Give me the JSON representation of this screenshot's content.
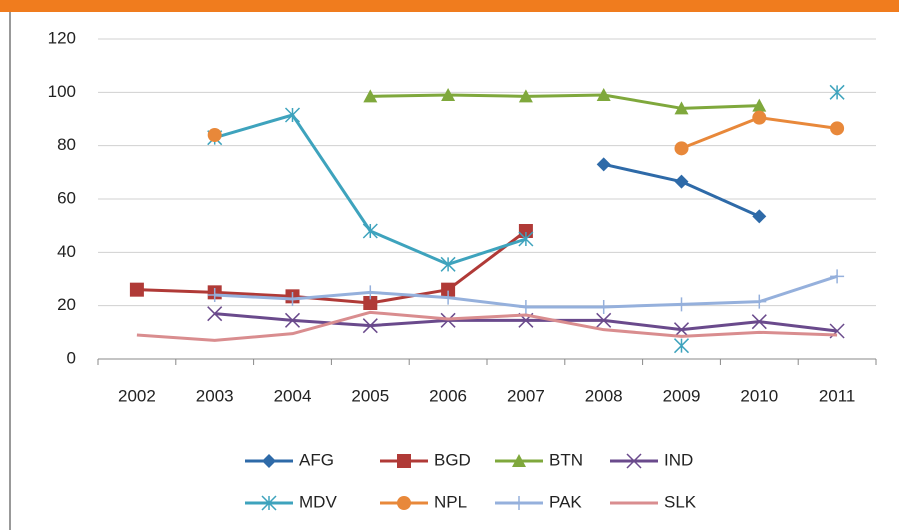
{
  "chart_data": {
    "type": "line",
    "categories": [
      "2002",
      "2003",
      "2004",
      "2005",
      "2006",
      "2007",
      "2008",
      "2009",
      "2010",
      "2011"
    ],
    "ylim": [
      0,
      120
    ],
    "yticks": [
      0,
      20,
      40,
      60,
      80,
      100,
      120
    ],
    "grid": true,
    "series": [
      {
        "name": "AFG",
        "color": "#2e6aa8",
        "marker": "diamond",
        "values": [
          null,
          null,
          null,
          null,
          null,
          null,
          73,
          66.5,
          53.5,
          null
        ]
      },
      {
        "name": "BGD",
        "color": "#b03a37",
        "marker": "square",
        "values": [
          26,
          25,
          23.5,
          21,
          26,
          48,
          null,
          null,
          null,
          null
        ]
      },
      {
        "name": "BTN",
        "color": "#7fa83c",
        "marker": "triangle",
        "values": [
          null,
          null,
          null,
          98.5,
          99,
          98.5,
          99,
          94,
          95,
          null
        ]
      },
      {
        "name": "IND",
        "color": "#6a4a8c",
        "marker": "x",
        "values": [
          null,
          17,
          14.5,
          12.5,
          14.5,
          14.5,
          14.5,
          11,
          14,
          10.5
        ]
      },
      {
        "name": "MDV",
        "color": "#3ea3bd",
        "marker": "star",
        "values": [
          null,
          83,
          91.5,
          48,
          35.5,
          45,
          null,
          5,
          null,
          100
        ]
      },
      {
        "name": "NPL",
        "color": "#e8883a",
        "marker": "circle",
        "values": [
          null,
          84,
          null,
          null,
          null,
          null,
          null,
          79,
          90.5,
          86.5
        ]
      },
      {
        "name": "PAK",
        "color": "#95b0dc",
        "marker": "plus",
        "values": [
          null,
          24,
          22.5,
          25,
          23,
          19.5,
          19.5,
          20.5,
          21.5,
          31
        ]
      },
      {
        "name": "SLK",
        "color": "#d98d8f",
        "marker": "none",
        "values": [
          9,
          7,
          9.5,
          17.5,
          15,
          16.5,
          11,
          8.5,
          10,
          9
        ]
      }
    ]
  }
}
